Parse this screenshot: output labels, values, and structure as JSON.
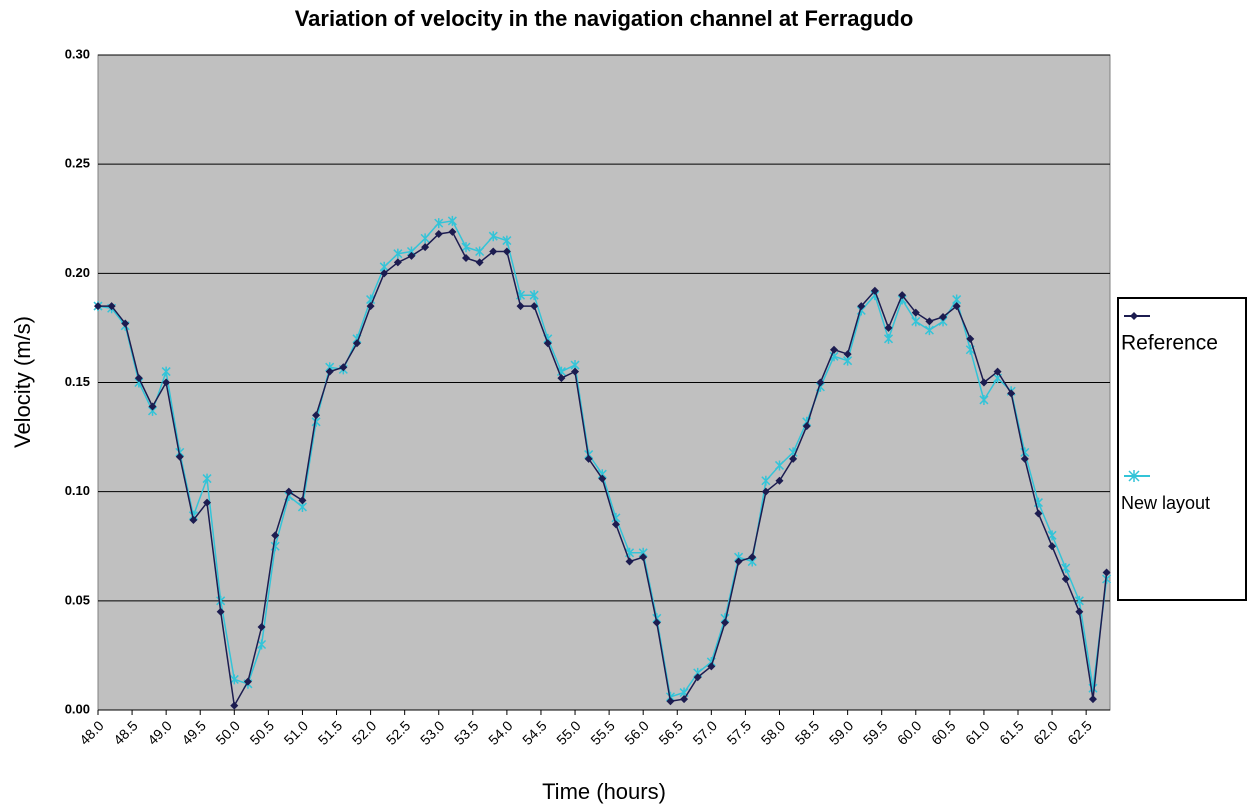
{
  "chart_data": {
    "type": "line",
    "title": "Variation of velocity in the navigation channel at Ferragudo",
    "x_label": "Time (hours)",
    "y_label": "Velocity (m/s)",
    "x": [
      48.0,
      48.2,
      48.4,
      48.6,
      48.8,
      49.0,
      49.2,
      49.4,
      49.6,
      49.8,
      50.0,
      50.2,
      50.4,
      50.6,
      50.8,
      51.0,
      51.2,
      51.4,
      51.6,
      51.8,
      52.0,
      52.2,
      52.4,
      52.6,
      52.8,
      53.0,
      53.2,
      53.4,
      53.6,
      53.8,
      54.0,
      54.2,
      54.4,
      54.6,
      54.8,
      55.0,
      55.2,
      55.4,
      55.6,
      55.8,
      56.0,
      56.2,
      56.4,
      56.6,
      56.8,
      57.0,
      57.2,
      57.4,
      57.6,
      57.8,
      58.0,
      58.2,
      58.4,
      58.6,
      58.8,
      59.0,
      59.2,
      59.4,
      59.6,
      59.8,
      60.0,
      60.2,
      60.4,
      60.6,
      60.8,
      61.0,
      61.2,
      61.4,
      61.6,
      61.8,
      62.0,
      62.2,
      62.4,
      62.6,
      62.8
    ],
    "series": [
      {
        "name": "Reference",
        "color": "#1c1c50",
        "marker": "diamond",
        "values": [
          0.185,
          0.185,
          0.177,
          0.152,
          0.139,
          0.15,
          0.116,
          0.087,
          0.095,
          0.045,
          0.002,
          0.013,
          0.038,
          0.08,
          0.1,
          0.096,
          0.135,
          0.155,
          0.157,
          0.168,
          0.185,
          0.2,
          0.205,
          0.208,
          0.212,
          0.218,
          0.219,
          0.207,
          0.205,
          0.21,
          0.21,
          0.185,
          0.185,
          0.168,
          0.152,
          0.155,
          0.115,
          0.106,
          0.085,
          0.068,
          0.07,
          0.04,
          0.004,
          0.005,
          0.015,
          0.02,
          0.04,
          0.068,
          0.07,
          0.1,
          0.105,
          0.115,
          0.13,
          0.15,
          0.165,
          0.163,
          0.185,
          0.192,
          0.175,
          0.19,
          0.182,
          0.178,
          0.18,
          0.185,
          0.17,
          0.15,
          0.155,
          0.145,
          0.115,
          0.09,
          0.075,
          0.06,
          0.045,
          0.005,
          0.063
        ]
      },
      {
        "name": "New layout",
        "color": "#33c4d8",
        "marker": "star",
        "values": [
          0.185,
          0.184,
          0.176,
          0.15,
          0.137,
          0.155,
          0.118,
          0.089,
          0.106,
          0.05,
          0.014,
          0.012,
          0.03,
          0.075,
          0.098,
          0.093,
          0.132,
          0.157,
          0.156,
          0.17,
          0.188,
          0.203,
          0.209,
          0.21,
          0.216,
          0.223,
          0.224,
          0.212,
          0.21,
          0.217,
          0.215,
          0.19,
          0.19,
          0.17,
          0.155,
          0.158,
          0.117,
          0.108,
          0.088,
          0.072,
          0.072,
          0.042,
          0.006,
          0.008,
          0.017,
          0.022,
          0.042,
          0.07,
          0.068,
          0.105,
          0.112,
          0.118,
          0.132,
          0.148,
          0.162,
          0.16,
          0.183,
          0.19,
          0.17,
          0.188,
          0.178,
          0.174,
          0.178,
          0.188,
          0.165,
          0.142,
          0.152,
          0.146,
          0.118,
          0.095,
          0.08,
          0.065,
          0.05,
          0.01,
          0.06
        ]
      }
    ],
    "xlim": [
      48.0,
      62.85
    ],
    "ylim": [
      0,
      0.3
    ],
    "xticks": [
      {
        "value": 48,
        "label": "48.0"
      },
      48.5,
      {
        "value": 49,
        "label": "49.0"
      },
      49.5,
      {
        "value": 50,
        "label": "50.0"
      },
      50.5,
      {
        "value": 51,
        "label": "51.0"
      },
      51.5,
      {
        "value": 52,
        "label": "52.0"
      },
      52.5,
      {
        "value": 53,
        "label": "53.0"
      },
      53.5,
      {
        "value": 54,
        "label": "54.0"
      },
      54.5,
      {
        "value": 55,
        "label": "55.0"
      },
      55.5,
      {
        "value": 56,
        "label": "56.0"
      },
      56.5,
      {
        "value": 57,
        "label": "57.0"
      },
      57.5,
      {
        "value": 58,
        "label": "58.0"
      },
      58.5,
      {
        "value": 59,
        "label": "59.0"
      },
      59.5,
      {
        "value": 60,
        "label": "60.0"
      },
      60.5,
      {
        "value": 61,
        "label": "61.0"
      },
      61.5,
      {
        "value": 62,
        "label": "62.0"
      },
      62.5
    ],
    "yticks": [
      {
        "value": 0,
        "label": "0.00"
      },
      0.05,
      {
        "value": 0.1,
        "label": "0.10"
      },
      0.15,
      {
        "value": 0.2,
        "label": "0.20"
      },
      0.25,
      {
        "value": 0.3,
        "label": "0.30"
      }
    ],
    "grid": true,
    "legend": "right"
  }
}
